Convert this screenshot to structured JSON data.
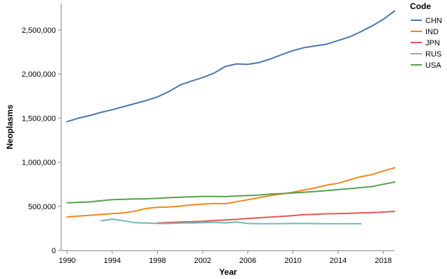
{
  "chart_data": {
    "type": "line",
    "xlabel": "Year",
    "ylabel": "Neoplasms",
    "xlim": [
      1989.5,
      2019
    ],
    "ylim": [
      0,
      2800000
    ],
    "x_ticks": [
      1990,
      1994,
      1998,
      2002,
      2006,
      2010,
      2014,
      2018
    ],
    "y_ticks": [
      0,
      500000,
      1000000,
      1500000,
      2000000,
      2500000
    ],
    "y_tick_labels": [
      "0",
      "500,000",
      "1,000,000",
      "1,500,000",
      "2,000,000",
      "2,500,000"
    ],
    "grid": false,
    "legend_title": "Code",
    "legend_position": "right",
    "series": [
      {
        "name": "CHN",
        "color": "#4c78a8",
        "x": [
          1990,
          1991,
          1992,
          1993,
          1994,
          1995,
          1996,
          1997,
          1998,
          1999,
          2000,
          2001,
          2002,
          2003,
          2004,
          2005,
          2006,
          2007,
          2008,
          2009,
          2010,
          2011,
          2012,
          2013,
          2014,
          2015,
          2016,
          2017,
          2018,
          2019
        ],
        "y": [
          1460000,
          1500000,
          1530000,
          1565000,
          1595000,
          1630000,
          1665000,
          1700000,
          1740000,
          1800000,
          1875000,
          1920000,
          1960000,
          2010000,
          2085000,
          2115000,
          2110000,
          2130000,
          2170000,
          2220000,
          2265000,
          2300000,
          2320000,
          2340000,
          2380000,
          2420000,
          2480000,
          2545000,
          2620000,
          2715000
        ]
      },
      {
        "name": "IND",
        "color": "#f58518",
        "x": [
          1990,
          1991,
          1992,
          1993,
          1994,
          1995,
          1996,
          1997,
          1998,
          1999,
          2000,
          2001,
          2002,
          2003,
          2004,
          2005,
          2006,
          2007,
          2008,
          2009,
          2010,
          2011,
          2012,
          2013,
          2014,
          2015,
          2016,
          2017,
          2018,
          2019
        ],
        "y": [
          380000,
          390000,
          398000,
          408000,
          418000,
          425000,
          445000,
          475000,
          488000,
          492000,
          502000,
          515000,
          525000,
          532000,
          530000,
          552000,
          575000,
          598000,
          622000,
          640000,
          660000,
          685000,
          710000,
          740000,
          762000,
          800000,
          835000,
          860000,
          900000,
          938000
        ]
      },
      {
        "name": "JPN",
        "color": "#e45756",
        "x": [
          1998,
          1999,
          2000,
          2001,
          2002,
          2003,
          2004,
          2005,
          2006,
          2007,
          2008,
          2009,
          2010,
          2011,
          2012,
          2013,
          2014,
          2015,
          2016,
          2017,
          2018,
          2019
        ],
        "y": [
          310000,
          316000,
          322000,
          325000,
          330000,
          338000,
          345000,
          352000,
          362000,
          370000,
          378000,
          385000,
          395000,
          405000,
          410000,
          415000,
          418000,
          420000,
          425000,
          428000,
          435000,
          442000
        ]
      },
      {
        "name": "RUS",
        "color": "#72b7b2",
        "x": [
          1993,
          1994,
          1995,
          1996,
          1997,
          1998,
          1999,
          2000,
          2001,
          2002,
          2003,
          2004,
          2005,
          2006,
          2007,
          2008,
          2009,
          2010,
          2011,
          2012,
          2013,
          2014,
          2015,
          2016
        ],
        "y": [
          335000,
          355000,
          335000,
          315000,
          310000,
          305000,
          305000,
          310000,
          312000,
          315000,
          318000,
          312000,
          322000,
          305000,
          303000,
          303000,
          304000,
          305000,
          305000,
          304000,
          303000,
          302000,
          303000,
          303000
        ]
      },
      {
        "name": "USA",
        "color": "#54a24b",
        "x": [
          1990,
          1991,
          1992,
          1993,
          1994,
          1995,
          1996,
          1997,
          1998,
          1999,
          2000,
          2001,
          2002,
          2003,
          2004,
          2005,
          2006,
          2007,
          2008,
          2009,
          2010,
          2011,
          2012,
          2013,
          2014,
          2015,
          2016,
          2017,
          2018,
          2019
        ],
        "y": [
          540000,
          545000,
          550000,
          563000,
          575000,
          580000,
          583000,
          585000,
          590000,
          598000,
          603000,
          608000,
          612000,
          612000,
          610000,
          618000,
          622000,
          628000,
          638000,
          645000,
          652000,
          660000,
          668000,
          678000,
          690000,
          700000,
          712000,
          724000,
          750000,
          775000
        ]
      }
    ]
  }
}
